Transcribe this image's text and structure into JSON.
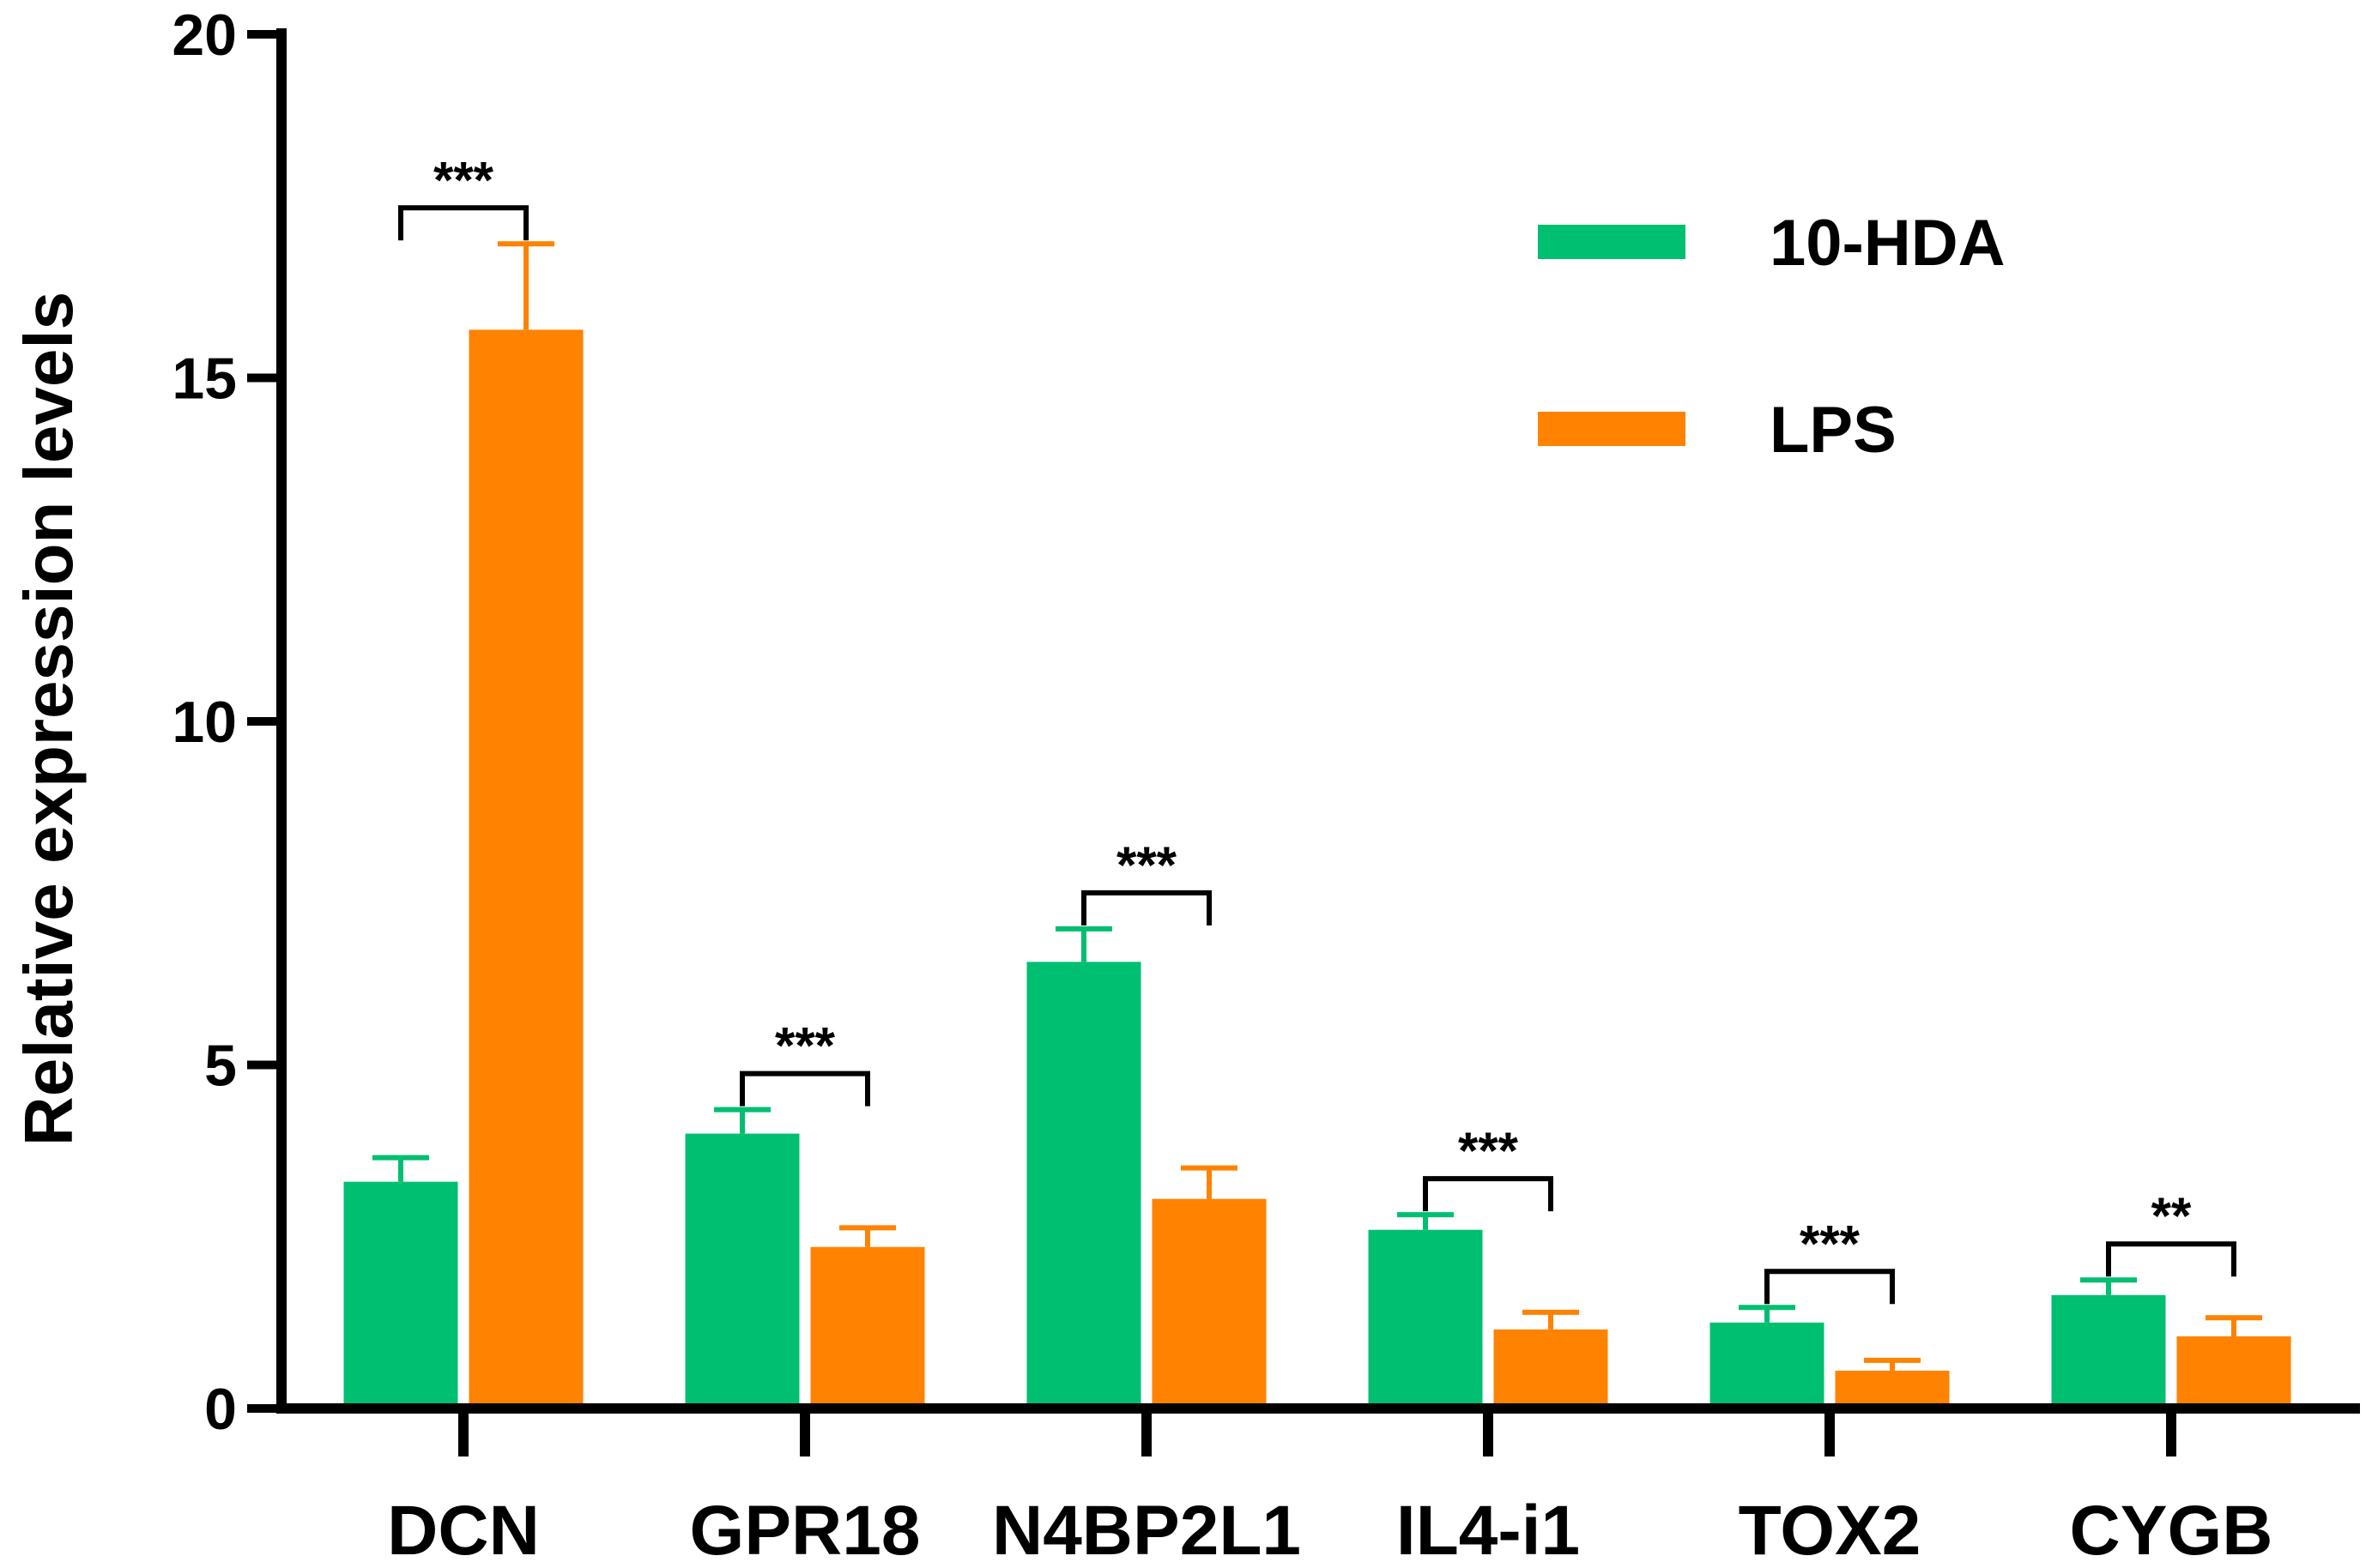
{
  "chart_data": {
    "type": "bar",
    "title": "",
    "xlabel": "",
    "ylabel": "Relative expression levels",
    "ylim": [
      0,
      20
    ],
    "yticks": [
      0,
      5,
      10,
      15,
      20
    ],
    "grid": false,
    "legend_position": "top-right",
    "categories": [
      "DCN",
      "GPR18",
      "N4BP2L1",
      "IL4-i1",
      "TOX2",
      "CYGB"
    ],
    "series": [
      {
        "name": "10-HDA",
        "color": "#00BF71",
        "values": [
          3.3,
          4.0,
          6.5,
          2.6,
          1.25,
          1.65
        ],
        "errors": [
          0.35,
          0.35,
          0.48,
          0.22,
          0.22,
          0.22
        ]
      },
      {
        "name": "LPS",
        "color": "#FF8200",
        "values": [
          15.7,
          2.35,
          3.05,
          1.15,
          0.55,
          1.05
        ],
        "errors": [
          1.25,
          0.28,
          0.45,
          0.25,
          0.15,
          0.27
        ]
      }
    ],
    "significance": [
      "***",
      "***",
      "***",
      "***",
      "***",
      "**"
    ]
  }
}
